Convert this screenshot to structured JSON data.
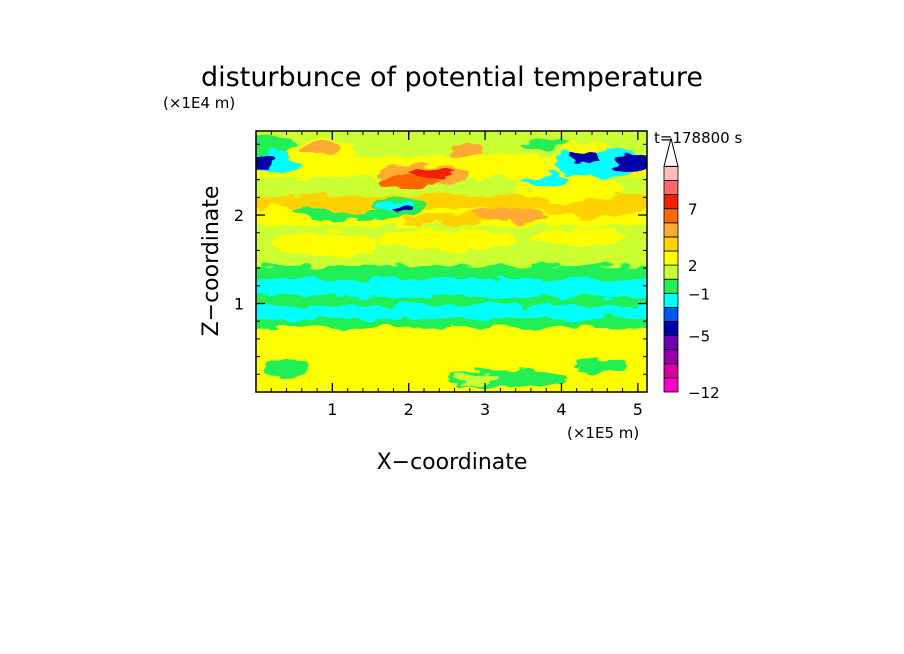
{
  "chart_data": {
    "type": "heatmap",
    "title": "disturbunce of potential temperature",
    "xlabel": "X−coordinate",
    "ylabel": "Z−coordinate",
    "x_scale_label": "(×1E5 m)",
    "y_scale_label": "(×1E4 m)",
    "time_label": "t=178800 s",
    "xlim": [
      0,
      5.12
    ],
    "ylim": [
      0,
      2.95
    ],
    "x_ticks": [
      "1",
      "2",
      "3",
      "4",
      "5"
    ],
    "x_tick_values": [
      1,
      2,
      3,
      4,
      5
    ],
    "y_ticks": [
      "1",
      "2"
    ],
    "y_tick_values": [
      1,
      2
    ],
    "colorbar": {
      "colors": [
        "#ff00cc",
        "#d9009f",
        "#9900aa",
        "#6a00b0",
        "#0000aa",
        "#0055ee",
        "#00ffff",
        "#22ee55",
        "#ccff33",
        "#ffff00",
        "#ffd200",
        "#ffaa33",
        "#ff6600",
        "#ee2200",
        "#ff6666",
        "#ffbbbb"
      ],
      "tick_labels": [
        "−12",
        "−5",
        "−1",
        "2",
        "7"
      ],
      "tick_levels": [
        0,
        4,
        7,
        9,
        13
      ],
      "extend_max": true
    },
    "bands": [
      {
        "y0": 0,
        "y1": 0.75,
        "level": 9
      },
      {
        "y0": 0.75,
        "y1": 0.85,
        "level": 7
      },
      {
        "y0": 0.85,
        "y1": 1.0,
        "level": 6
      },
      {
        "y0": 1.0,
        "y1": 1.1,
        "level": 7
      },
      {
        "y0": 1.1,
        "y1": 1.3,
        "level": 6
      },
      {
        "y0": 1.3,
        "y1": 1.45,
        "level": 7
      },
      {
        "y0": 1.45,
        "y1": 1.9,
        "level": 8
      },
      {
        "y0": 1.9,
        "y1": 2.1,
        "level": 9
      },
      {
        "y0": 2.1,
        "y1": 2.25,
        "level": 10
      },
      {
        "y0": 2.25,
        "y1": 2.45,
        "level": 8
      },
      {
        "y0": 2.45,
        "y1": 2.7,
        "level": 9
      },
      {
        "y0": 2.7,
        "y1": 2.95,
        "level": 8
      }
    ],
    "blobs": [
      {
        "x": 0.9,
        "y": 1.67,
        "rx": 0.7,
        "ry": 0.13,
        "level": 9
      },
      {
        "x": 2.5,
        "y": 1.72,
        "rx": 0.9,
        "ry": 0.12,
        "level": 9
      },
      {
        "x": 4.2,
        "y": 1.75,
        "rx": 0.6,
        "ry": 0.1,
        "level": 9
      },
      {
        "x": 3.3,
        "y": 0.15,
        "rx": 0.8,
        "ry": 0.1,
        "level": 7
      },
      {
        "x": 4.5,
        "y": 0.3,
        "rx": 0.35,
        "ry": 0.08,
        "level": 7
      },
      {
        "x": 0.4,
        "y": 0.25,
        "rx": 0.3,
        "ry": 0.1,
        "level": 7
      },
      {
        "x": 2.9,
        "y": 0.15,
        "rx": 0.3,
        "ry": 0.06,
        "level": 8
      },
      {
        "x": 1.3,
        "y": 2.05,
        "rx": 0.8,
        "ry": 0.1,
        "level": 7
      },
      {
        "x": 1.2,
        "y": 2.1,
        "rx": 0.5,
        "ry": 0.08,
        "level": 10
      },
      {
        "x": 2.5,
        "y": 1.95,
        "rx": 0.6,
        "ry": 0.07,
        "level": 10
      },
      {
        "x": 3.3,
        "y": 2.0,
        "rx": 0.5,
        "ry": 0.08,
        "level": 11
      },
      {
        "x": 4.4,
        "y": 2.1,
        "rx": 0.7,
        "ry": 0.12,
        "level": 10
      },
      {
        "x": 1.85,
        "y": 2.1,
        "rx": 0.35,
        "ry": 0.1,
        "level": 7
      },
      {
        "x": 1.8,
        "y": 2.1,
        "rx": 0.25,
        "ry": 0.06,
        "level": 6
      },
      {
        "x": 1.95,
        "y": 2.06,
        "rx": 0.12,
        "ry": 0.03,
        "level": 4
      },
      {
        "x": 4.1,
        "y": 2.3,
        "rx": 0.7,
        "ry": 0.15,
        "level": 9
      },
      {
        "x": 0.1,
        "y": 2.75,
        "rx": 0.5,
        "ry": 0.15,
        "level": 7
      },
      {
        "x": 0.2,
        "y": 2.6,
        "rx": 0.4,
        "ry": 0.12,
        "level": 6
      },
      {
        "x": 0.08,
        "y": 2.6,
        "rx": 0.15,
        "ry": 0.1,
        "level": 4
      },
      {
        "x": 0.9,
        "y": 2.7,
        "rx": 0.5,
        "ry": 0.15,
        "level": 9
      },
      {
        "x": 1.5,
        "y": 2.72,
        "rx": 0.25,
        "ry": 0.08,
        "level": 8
      },
      {
        "x": 2.2,
        "y": 2.45,
        "rx": 0.6,
        "ry": 0.12,
        "level": 11
      },
      {
        "x": 2.0,
        "y": 2.38,
        "rx": 0.4,
        "ry": 0.07,
        "level": 12
      },
      {
        "x": 0.85,
        "y": 2.75,
        "rx": 0.25,
        "ry": 0.07,
        "level": 11
      },
      {
        "x": 2.3,
        "y": 2.48,
        "rx": 0.3,
        "ry": 0.05,
        "level": 13
      },
      {
        "x": 2.75,
        "y": 2.72,
        "rx": 0.2,
        "ry": 0.06,
        "level": 11
      },
      {
        "x": 3.8,
        "y": 2.4,
        "rx": 0.3,
        "ry": 0.08,
        "level": 6
      },
      {
        "x": 3.6,
        "y": 2.55,
        "rx": 0.4,
        "ry": 0.12,
        "level": 9
      },
      {
        "x": 4.5,
        "y": 2.6,
        "rx": 0.6,
        "ry": 0.18,
        "level": 6
      },
      {
        "x": 4.3,
        "y": 2.65,
        "rx": 0.18,
        "ry": 0.08,
        "level": 4
      },
      {
        "x": 4.95,
        "y": 2.6,
        "rx": 0.25,
        "ry": 0.1,
        "level": 4
      },
      {
        "x": 3.8,
        "y": 2.8,
        "rx": 0.3,
        "ry": 0.06,
        "level": 7
      },
      {
        "x": 4.3,
        "y": 2.75,
        "rx": 0.3,
        "ry": 0.08,
        "level": 9
      }
    ]
  }
}
